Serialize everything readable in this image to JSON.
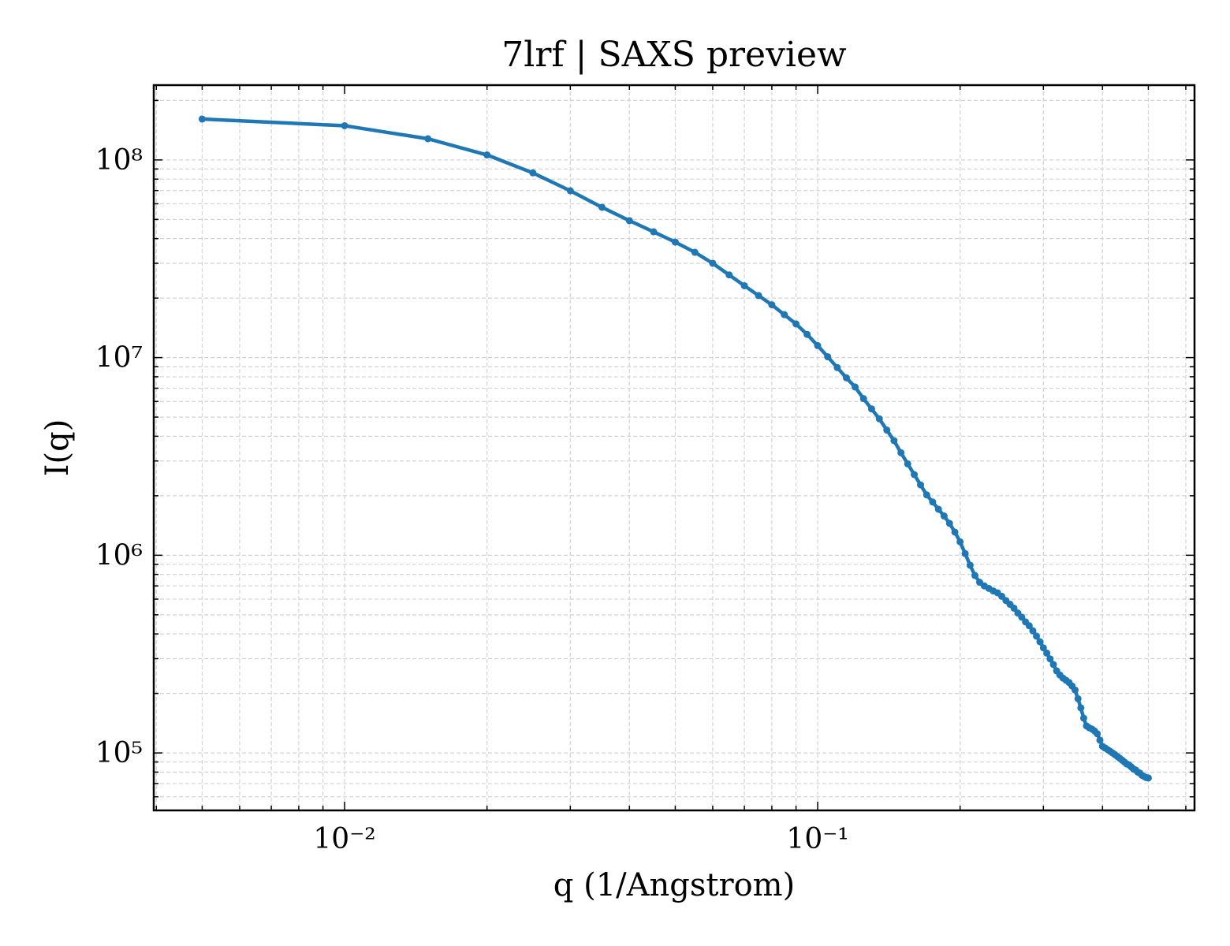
{
  "chart_data": {
    "type": "line",
    "title": "7lrf | SAXS preview",
    "x_label": "q (1/Angstrom)",
    "y_label": "I(q)",
    "x": [
      0.005,
      0.01,
      0.015,
      0.02,
      0.025,
      0.03,
      0.035,
      0.04,
      0.045,
      0.05,
      0.055,
      0.06,
      0.065,
      0.07,
      0.075,
      0.08,
      0.085,
      0.09,
      0.095,
      0.1,
      0.105,
      0.11,
      0.115,
      0.12,
      0.125,
      0.13,
      0.135,
      0.14,
      0.145,
      0.15,
      0.155,
      0.16,
      0.165,
      0.17,
      0.175,
      0.18,
      0.185,
      0.19,
      0.195,
      0.2,
      0.205,
      0.21,
      0.215,
      0.22,
      0.225,
      0.23,
      0.235,
      0.24,
      0.245,
      0.25,
      0.255,
      0.26,
      0.265,
      0.27,
      0.275,
      0.28,
      0.285,
      0.29,
      0.295,
      0.3,
      0.305,
      0.31,
      0.315,
      0.32,
      0.325,
      0.33,
      0.335,
      0.34,
      0.345,
      0.35,
      0.355,
      0.36,
      0.365,
      0.37,
      0.375,
      0.38,
      0.385,
      0.39,
      0.395,
      0.4,
      0.405,
      0.41,
      0.415,
      0.42,
      0.425,
      0.43,
      0.435,
      0.44,
      0.445,
      0.45,
      0.455,
      0.46,
      0.465,
      0.47,
      0.475,
      0.48,
      0.485,
      0.49,
      0.495,
      0.5
    ],
    "series": [
      {
        "color": "#1f77b4",
        "values": [
          161000000.0,
          149000000.0,
          128000000.0,
          106000000.0,
          86000000.0,
          69800000.0,
          57600000.0,
          49300000.0,
          43300000.0,
          38400000.0,
          34100000.0,
          30000000.0,
          26200000.0,
          23100000.0,
          20600000.0,
          18500000.0,
          16500000.0,
          14800000.0,
          13100000.0,
          11500000.0,
          10100000.0,
          8900000.0,
          7900000.0,
          7100000.0,
          6200000.0,
          5500000.0,
          4900000.0,
          4300000.0,
          3800000.0,
          3300000.0,
          2900000.0,
          2560000.0,
          2270000.0,
          2020000.0,
          1860000.0,
          1710000.0,
          1580000.0,
          1450000.0,
          1310000.0,
          1170000.0,
          1020000.0,
          890000.0,
          790000.0,
          730000.0,
          700000.0,
          680000.0,
          660000.0,
          646000.0,
          620000.0,
          590000.0,
          565000.0,
          540000.0,
          510000.0,
          486000.0,
          460000.0,
          440000.0,
          415000.0,
          390000.0,
          365000.0,
          340000.0,
          320000.0,
          299000.0,
          280000.0,
          260000.0,
          248000.0,
          239000.0,
          233000.0,
          227000.0,
          218000.0,
          208000.0,
          188000.0,
          169000.0,
          150000.0,
          137000.0,
          134000.0,
          132000.0,
          129000.0,
          125000.0,
          116000.0,
          108000.0,
          106000.0,
          104000.0,
          102000.0,
          100000.0,
          98000.0,
          96000.0,
          94000.0,
          92000.0,
          90000.0,
          88000.0,
          87000.0,
          85000.0,
          83000.0,
          82000.0,
          80000.0,
          79000.0,
          77000.0,
          76000.0,
          75000.0,
          74700.0
        ]
      }
    ],
    "xscale": "log",
    "yscale": "log",
    "xlim": [
      0.00395,
      0.626
    ],
    "ylim": [
      51200,
      239000000
    ],
    "xticks": [
      {
        "value": 0.01,
        "label": "10⁻²"
      },
      {
        "value": 0.1,
        "label": "10⁻¹"
      }
    ],
    "yticks": [
      {
        "value": 100000,
        "label": "10⁵"
      },
      {
        "value": 1000000,
        "label": "10⁶"
      },
      {
        "value": 10000000,
        "label": "10⁷"
      },
      {
        "value": 100000000,
        "label": "10⁸"
      }
    ],
    "grid": true,
    "minor_grid": true
  }
}
